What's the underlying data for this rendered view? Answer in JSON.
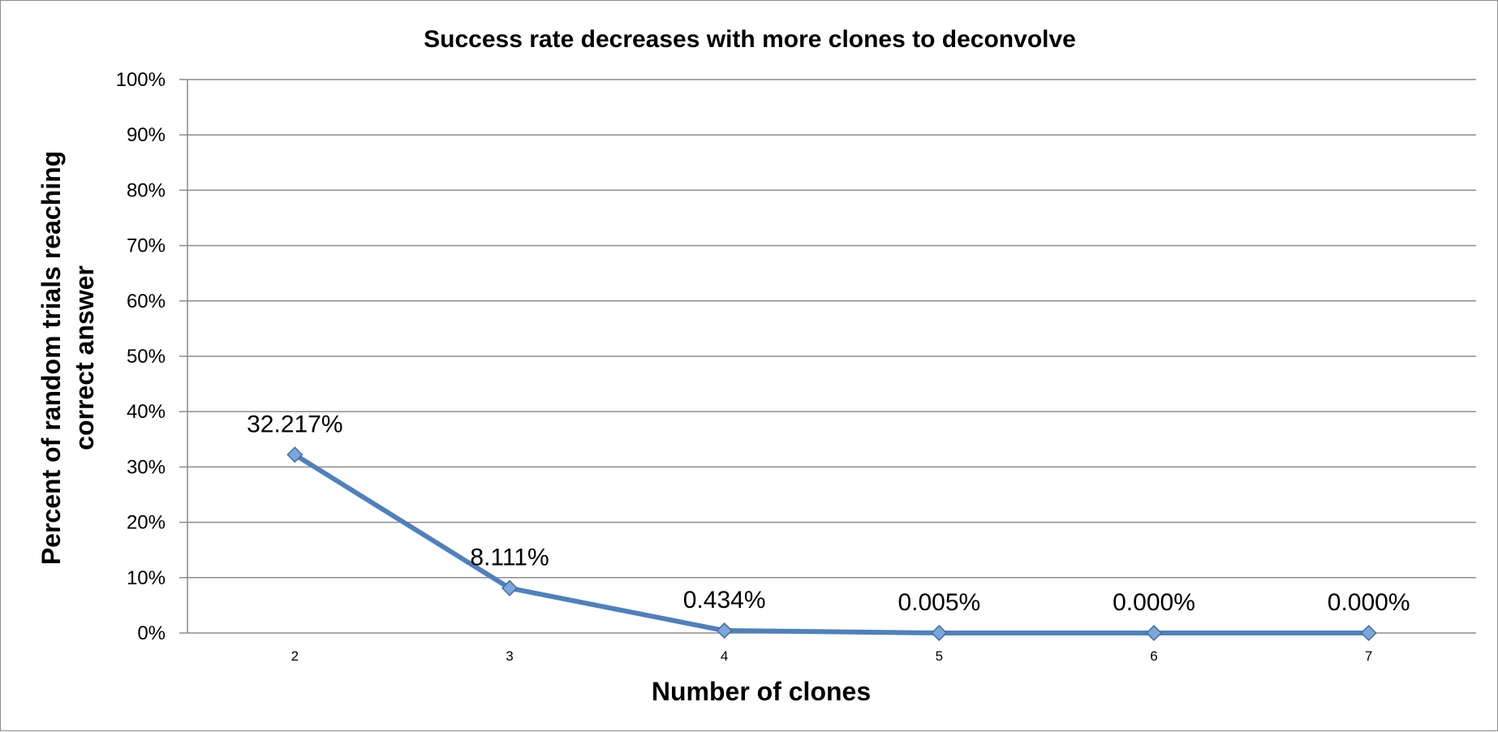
{
  "chart_data": {
    "type": "line",
    "title": "Success rate decreases with more clones to deconvolve",
    "xlabel": "Number of clones",
    "ylabel_lines": [
      "Percent of random trials reaching",
      "correct answer"
    ],
    "categories": [
      "2",
      "3",
      "4",
      "5",
      "6",
      "7"
    ],
    "series": [
      {
        "values": [
          32.217,
          8.111,
          0.434,
          0.005,
          0.0,
          0.0
        ],
        "data_labels": [
          "32.217%",
          "8.111%",
          "0.434%",
          "0.005%",
          "0.000%",
          "0.000%"
        ],
        "color": "#4f81bd",
        "marker": "diamond"
      }
    ],
    "yticks": [
      "0%",
      "10%",
      "20%",
      "30%",
      "40%",
      "50%",
      "60%",
      "70%",
      "80%",
      "90%",
      "100%"
    ],
    "ylim": [
      0,
      100
    ],
    "grid": true,
    "legend": "none"
  },
  "colors": {
    "line": "#4f81bd",
    "marker_fill": "#7da6d9",
    "marker_stroke": "#3f6ea8",
    "grid": "#8c8c8c"
  }
}
